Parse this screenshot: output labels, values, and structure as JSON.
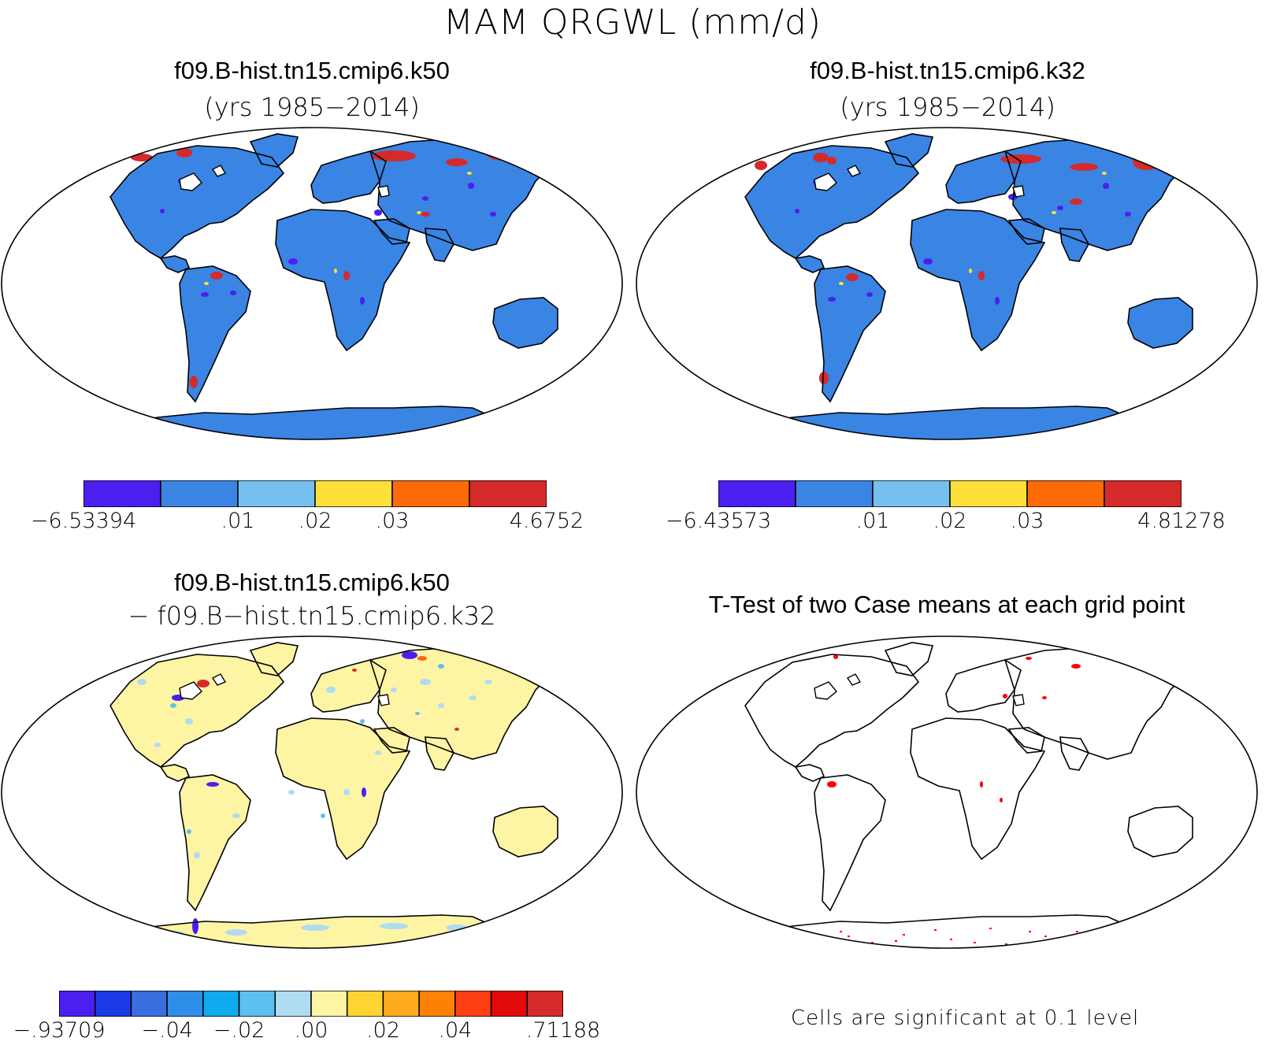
{
  "figure_title": "MAM QRGWL (mm/d)",
  "panels": [
    {
      "title": "f09.B-hist.tn15.cmip6.k50",
      "subtitle": "(yrs 1985−2014)",
      "land_color": "#3a84e4",
      "colorbar": {
        "colors": [
          "#4b1fef",
          "#3a84e4",
          "#75c0ee",
          "#fde03a",
          "#fe6a06",
          "#d52a2b"
        ],
        "labels": [
          "−6.53394",
          ".01",
          ".02",
          ".03",
          "4.6752"
        ]
      }
    },
    {
      "title": "f09.B-hist.tn15.cmip6.k32",
      "subtitle": "(yrs 1985−2014)",
      "land_color": "#3a84e4",
      "colorbar": {
        "colors": [
          "#4b1fef",
          "#3a84e4",
          "#75c0ee",
          "#fde03a",
          "#fe6a06",
          "#d52a2b"
        ],
        "labels": [
          "−6.43573",
          ".01",
          ".02",
          ".03",
          "4.81278"
        ]
      }
    },
    {
      "title": "f09.B-hist.tn15.cmip6.k50",
      "subtitle": "− f09.B−hist.tn15.cmip6.k32",
      "land_color": "#fdf4a4",
      "colorbar": {
        "colors": [
          "#4b1fef",
          "#1a3be6",
          "#3a6ee0",
          "#2f8ee8",
          "#10aaee",
          "#5ec0ee",
          "#b0dcf2",
          "#fdf4a4",
          "#fdd533",
          "#feab1c",
          "#fe8106",
          "#fe3f14",
          "#e20a0a",
          "#d52a2b"
        ],
        "labels": [
          "−.93709",
          "−.04",
          "−.02",
          ".00",
          ".02",
          ".04",
          ".71188"
        ]
      }
    },
    {
      "title": "T-Test of two Case means at each grid point",
      "land_color": "#ffffff",
      "note": "Cells are significant at 0.1 level"
    }
  ]
}
